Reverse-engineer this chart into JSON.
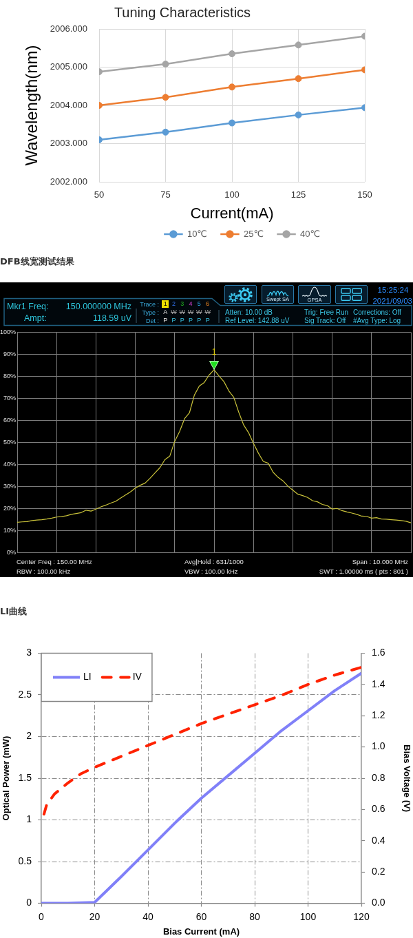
{
  "chart_data": [
    {
      "type": "line",
      "title": "Tuning Characteristics",
      "xlabel": "Current(mA)",
      "ylabel": "Wavelength(nm)",
      "x": [
        50,
        75,
        100,
        125,
        150
      ],
      "xlim": [
        50,
        150
      ],
      "xticks": [
        50,
        75,
        100,
        125,
        150
      ],
      "ylim": [
        2002,
        2006
      ],
      "yticks": [
        {
          "value": 2002,
          "label": "2002.000"
        },
        {
          "value": 2003,
          "label": "2003.000"
        },
        {
          "value": 2004,
          "label": "2004.000"
        },
        {
          "value": 2005,
          "label": "2005.000"
        },
        {
          "value": 2006,
          "label": "2006.000"
        }
      ],
      "grid": true,
      "legend": "bottom",
      "marker": "circle",
      "series": [
        {
          "name": "10℃",
          "color": "#5b9bd5",
          "values": [
            2003.1,
            2003.3,
            2003.54,
            2003.75,
            2003.94
          ]
        },
        {
          "name": "25℃",
          "color": "#ed7d31",
          "values": [
            2004.0,
            2004.21,
            2004.48,
            2004.7,
            2004.93
          ]
        },
        {
          "name": "40℃",
          "color": "#a5a5a5",
          "values": [
            2004.88,
            2005.08,
            2005.35,
            2005.58,
            2005.81
          ]
        }
      ]
    },
    {
      "type": "line",
      "title": "DFB线宽测试结果",
      "categories": [
        null,
        null,
        null,
        null,
        null,
        null,
        null,
        null,
        null,
        null,
        null,
        null,
        null,
        null,
        null,
        null,
        null,
        null,
        null,
        null,
        null,
        null,
        null,
        null,
        null,
        null,
        null,
        null,
        null,
        null,
        null,
        null,
        null,
        null,
        null,
        null,
        null,
        null,
        null,
        null,
        null,
        null,
        null,
        null,
        null,
        null,
        null,
        null,
        null,
        null,
        null,
        null,
        null,
        null,
        null,
        null,
        null,
        null,
        null,
        null,
        null,
        null,
        null,
        null,
        null,
        null,
        null,
        null,
        null,
        null,
        null,
        null,
        null,
        null,
        null,
        null,
        null,
        null,
        null,
        null,
        null
      ],
      "ylim": [
        0,
        100
      ],
      "yticks": [
        {
          "value": 0,
          "label": "0%"
        },
        {
          "value": 10,
          "label": "10%"
        },
        {
          "value": 20,
          "label": "20%"
        },
        {
          "value": 30,
          "label": "30%"
        },
        {
          "value": 40,
          "label": "40%"
        },
        {
          "value": 50,
          "label": "50%"
        },
        {
          "value": 60,
          "label": "60%"
        },
        {
          "value": 70,
          "label": "70%"
        },
        {
          "value": 80,
          "label": "80%"
        },
        {
          "value": 90,
          "label": "90%"
        },
        {
          "value": 100,
          "label": "100%"
        }
      ],
      "tick_labels": "y",
      "grid": true,
      "color": "#c9c23a",
      "values": [
        13.8,
        14.0,
        14.1,
        14.6,
        14.8,
        15.0,
        15.3,
        15.7,
        16.2,
        16.4,
        16.8,
        17.4,
        17.8,
        18.2,
        19.3,
        18.9,
        19.8,
        20.8,
        21.6,
        22.5,
        23.3,
        24.8,
        26.2,
        27.6,
        29.3,
        30.6,
        31.6,
        33.8,
        36.2,
        38.6,
        42.2,
        43.8,
        50.5,
        55.0,
        60.8,
        63.5,
        71.5,
        75.6,
        77.2,
        80.6,
        83.0,
        80.2,
        77.6,
        73.4,
        70.5,
        63.8,
        58.0,
        54.5,
        49.6,
        45.2,
        41.4,
        40.6,
        36.5,
        34.2,
        32.6,
        30.2,
        28.4,
        26.6,
        25.9,
        25.1,
        23.6,
        23.1,
        21.9,
        21.4,
        19.8,
        20.1,
        19.1,
        18.5,
        18.0,
        17.4,
        16.6,
        16.5,
        15.7,
        15.9,
        15.3,
        15.2,
        15.0,
        14.8,
        14.6,
        14.3,
        13.6
      ],
      "annotations": [
        "Mkr1 Freq:",
        "150.000000 MHz",
        "Ampt:",
        "118.59 uV",
        "Trace :",
        "1 2 3 4 5 6",
        "Type :",
        "A W W W W W",
        "Det :",
        "P P P P P P",
        "Atten: 10.00 dB",
        "Ref Level: 142.88 uV",
        "Trig: Free Run",
        "Sig Track: Off",
        "Corrections: Off",
        "#Avg Type: Log",
        "Swept SA",
        "GPSA",
        "15:25:24",
        "2021/09/03",
        "Center Freq : 150.00 MHz",
        "RBW : 100.00 kHz",
        "Avg|Hold : 631/1000",
        "VBW : 100.00 kHz",
        "Span : 10.000 MHz",
        "SWT : 1.00000 ms ( pts : 801 )",
        {
          "text": "1",
          "y": 83
        }
      ]
    },
    {
      "type": "line",
      "title": "LI曲线",
      "xlabel": "Bias Current (mA)",
      "ylabel": "Optical Power (mW)",
      "y2label": "Bias Voltage (V)",
      "xlim": [
        0,
        120
      ],
      "xticks": [
        0,
        20,
        40,
        60,
        80,
        100,
        120
      ],
      "ylim": [
        0,
        3
      ],
      "yticks": [
        0,
        0.5,
        1,
        1.5,
        2,
        2.5,
        3
      ],
      "y2lim": [
        0,
        1.6
      ],
      "y2ticks": [
        {
          "value": 0,
          "label": "0.0"
        },
        0.2,
        0.4,
        0.6,
        0.8,
        {
          "value": 1,
          "label": "1.0"
        },
        1.2,
        1.4,
        1.6
      ],
      "grid": true,
      "legend": "top left",
      "series": [
        {
          "name": "LI",
          "color": "#8080f8",
          "x": [
            0,
            10,
            20,
            30,
            40,
            50,
            60,
            70,
            80,
            90,
            100,
            110,
            120
          ],
          "values": [
            0,
            0,
            0.01,
            0.32,
            0.64,
            0.96,
            1.26,
            1.53,
            1.8,
            2.07,
            2.31,
            2.55,
            2.76
          ]
        },
        {
          "name": "IV",
          "color": "#ff2200",
          "line_style": "dashed",
          "axis": "y2",
          "x": [
            1,
            2,
            5,
            10,
            15,
            20,
            30,
            40,
            50,
            60,
            70,
            80,
            90,
            100,
            110,
            120
          ],
          "values": [
            0.57,
            0.63,
            0.7,
            0.77,
            0.83,
            0.87,
            0.94,
            1.01,
            1.08,
            1.15,
            1.21,
            1.27,
            1.33,
            1.4,
            1.46,
            1.51
          ]
        }
      ]
    }
  ]
}
